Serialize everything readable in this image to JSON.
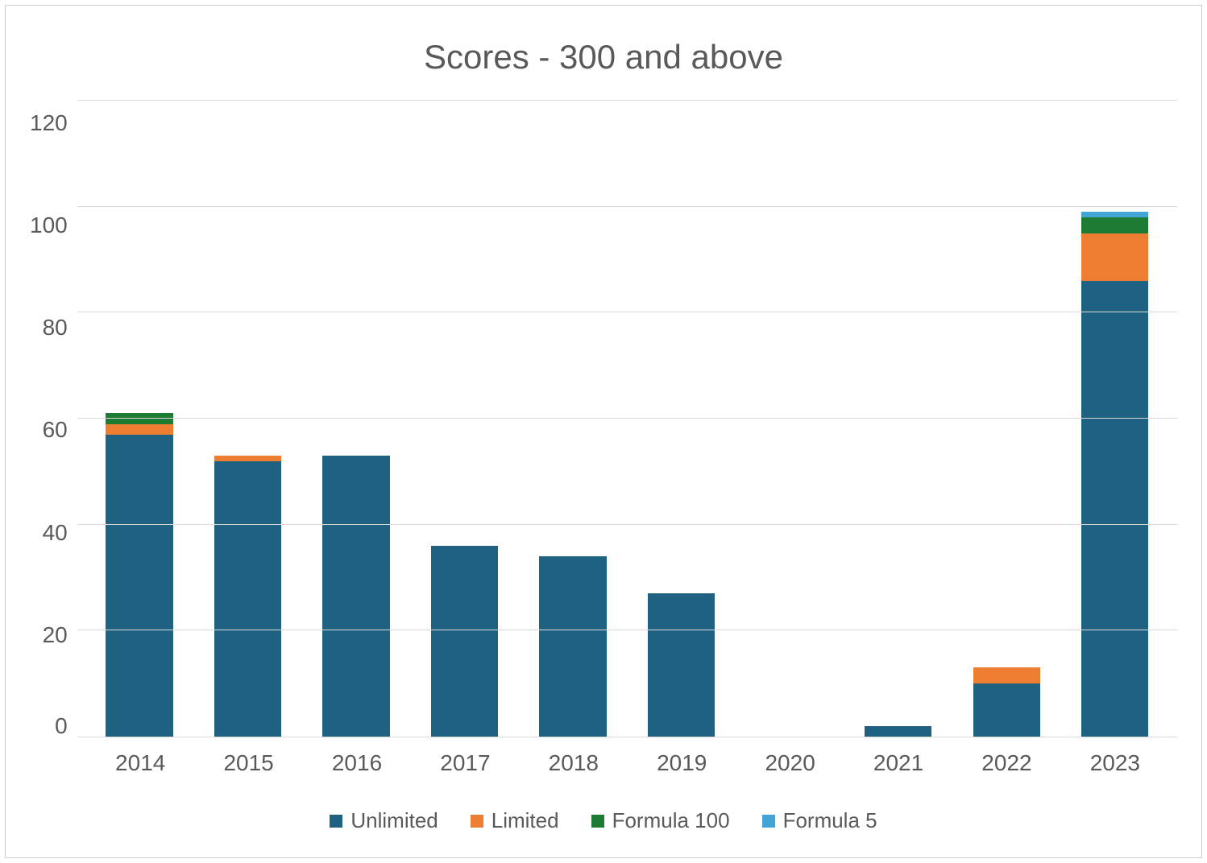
{
  "chart": {
    "type": "stacked-bar",
    "title": "Scores - 300 and above",
    "title_fontsize": 42,
    "title_color": "#595959",
    "background_color": "#ffffff",
    "border_color": "#cccccc",
    "grid_color": "#d9d9d9",
    "axis_label_color": "#595959",
    "axis_label_fontsize": 28,
    "ylim": [
      0,
      120
    ],
    "ytick_step": 20,
    "yticks": [
      120,
      100,
      80,
      60,
      40,
      20,
      0
    ],
    "categories": [
      "2014",
      "2015",
      "2016",
      "2017",
      "2018",
      "2019",
      "2020",
      "2021",
      "2022",
      "2023"
    ],
    "series": [
      {
        "name": "Unlimited",
        "color": "#1f6181",
        "values": [
          57,
          52,
          53,
          36,
          34,
          27,
          0,
          2,
          10,
          86
        ]
      },
      {
        "name": "Limited",
        "color": "#ed7d31",
        "values": [
          2,
          1,
          0,
          0,
          0,
          0,
          0,
          0,
          3,
          9
        ]
      },
      {
        "name": "Formula 100",
        "color": "#1e7b34",
        "values": [
          2,
          0,
          0,
          0,
          0,
          0,
          0,
          0,
          0,
          3
        ]
      },
      {
        "name": "Formula 5",
        "color": "#42a5d6",
        "values": [
          0,
          0,
          0,
          0,
          0,
          0,
          0,
          0,
          0,
          1
        ]
      }
    ],
    "bar_width_ratio": 0.62,
    "legend_fontsize": 26
  }
}
